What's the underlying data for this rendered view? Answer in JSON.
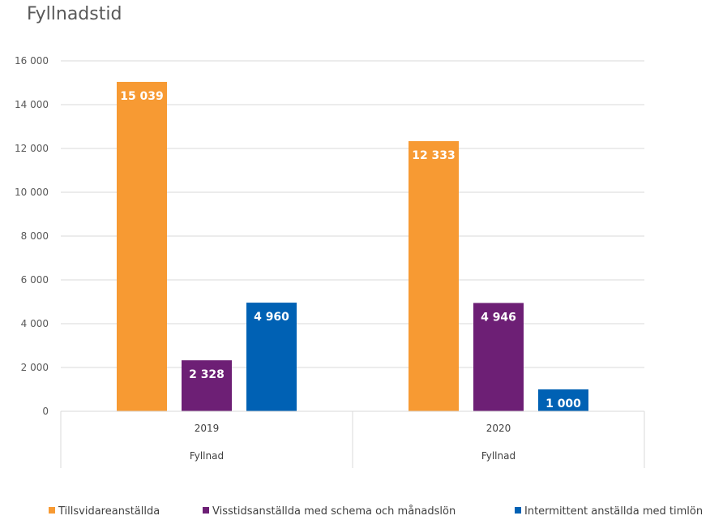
{
  "chart_data": {
    "type": "bar",
    "title": "Fyllnadstid",
    "xlabel": "",
    "ylabel": "",
    "ylim": [
      0,
      16000
    ],
    "yticks": [
      0,
      2000,
      4000,
      6000,
      8000,
      10000,
      12000,
      14000,
      16000
    ],
    "ytick_labels": [
      "0",
      "2 000",
      "4 000",
      "6 000",
      "8 000",
      "10 000",
      "12 000",
      "14 000",
      "16 000"
    ],
    "categories": [
      "2019",
      "2020"
    ],
    "category_group_labels": [
      "Fyllnad",
      "Fyllnad"
    ],
    "series": [
      {
        "name": "Tillsvidareanställda",
        "color": "#F79A33",
        "values": [
          15039,
          12333
        ],
        "labels": [
          "15 039",
          "12 333"
        ]
      },
      {
        "name": "Visstidsanställda med schema och månadslön",
        "color": "#6D1F75",
        "values": [
          2328,
          4946
        ],
        "labels": [
          "2 328",
          "4 946"
        ]
      },
      {
        "name": "Intermittent anställda med timlön",
        "color": "#0061B4",
        "values": [
          4960,
          1000
        ],
        "labels": [
          "4 960",
          "1 000"
        ]
      }
    ],
    "grid": true,
    "legend_position": "bottom"
  }
}
